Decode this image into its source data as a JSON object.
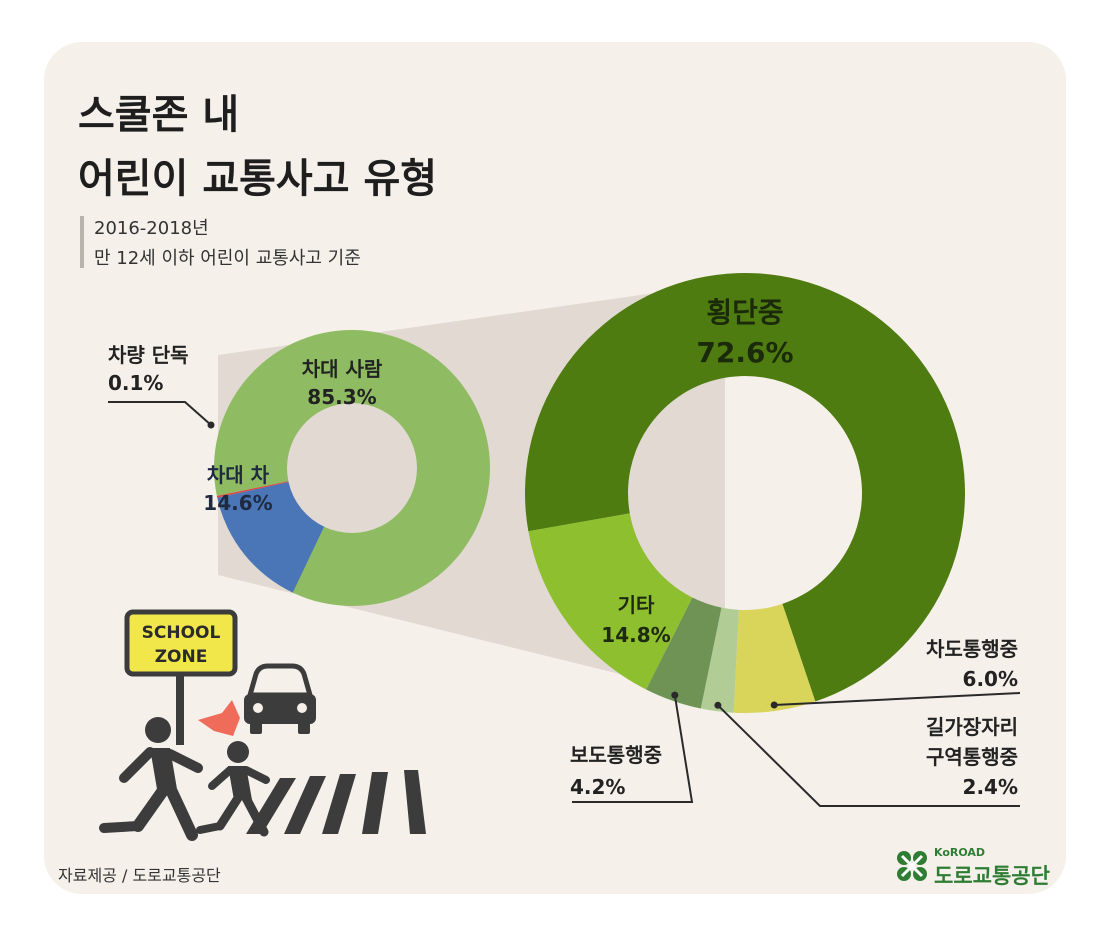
{
  "title_line1": "스쿨존 내",
  "title_line2": "어린이 교통사고 유형",
  "subtitle_line1": "2016-2018년",
  "subtitle_line2": "만 12세 이하 어린이 교통사고 기준",
  "chart_data": [
    {
      "type": "pie",
      "style": "donut",
      "slices": [
        {
          "label": "차대 사람",
          "value": 85.3,
          "value_label": "85.3%",
          "color": "#8fbc62"
        },
        {
          "label": "차대 차",
          "value": 14.6,
          "value_label": "14.6%",
          "color": "#4a76b8"
        },
        {
          "label": "차량 단독",
          "value": 0.1,
          "value_label": "0.1%",
          "color": "#e04646"
        }
      ]
    },
    {
      "type": "pie",
      "style": "donut",
      "breakdown_of": "차대 사람",
      "slices": [
        {
          "label": "횡단중",
          "value": 72.6,
          "value_label": "72.6%",
          "color": "#4f7c10"
        },
        {
          "label": "차도통행중",
          "value": 6.0,
          "value_label": "6.0%",
          "color": "#d9d45a"
        },
        {
          "label": "길가장자리 구역통행중",
          "label_lines": [
            "길가장자리",
            "구역통행중"
          ],
          "value": 2.4,
          "value_label": "2.4%",
          "color": "#b2cc95"
        },
        {
          "label": "보도통행중",
          "value": 4.2,
          "value_label": "4.2%",
          "color": "#6e9355"
        },
        {
          "label": "기타",
          "value": 14.8,
          "value_label": "14.8%",
          "color": "#8dbf2e"
        }
      ]
    }
  ],
  "sign_text": [
    "SCHOOL",
    "ZONE"
  ],
  "source": "자료제공 / 도로교통공단",
  "logo": {
    "en": "KoROAD",
    "kr": "도로교통공단",
    "color": "#2f7d35"
  },
  "colors": {
    "background": "#f5f0ea",
    "title": "#1e1e1e",
    "connector": "#e1d9d2",
    "silhouette": "#3c3c3c",
    "sign_yellow": "#f2e74a",
    "arrow_red": "#ef6c5a"
  }
}
